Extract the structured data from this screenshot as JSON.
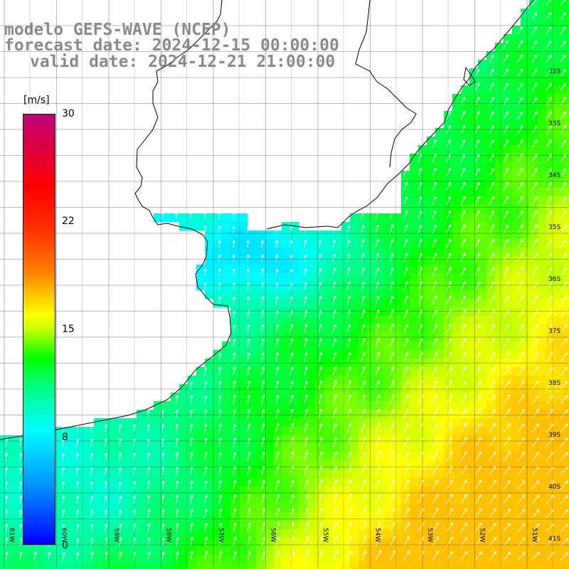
{
  "title": {
    "line1": "modelo GEFS-WAVE (NCEP)",
    "line2": "forecast date: 2024-12-15 00:00:00",
    "line3": "valid date: 2024-12-21 21:00:00"
  },
  "colorbar": {
    "unit": "[m/s]",
    "ticks": [
      "30",
      "22",
      "15",
      "8",
      "0"
    ],
    "stops": [
      {
        "value": 0,
        "color": "#0000ff"
      },
      {
        "value": 4,
        "color": "#0090ff"
      },
      {
        "value": 8,
        "color": "#00ffff"
      },
      {
        "value": 11,
        "color": "#00ff80"
      },
      {
        "value": 13,
        "color": "#00ff00"
      },
      {
        "value": 15,
        "color": "#c8ff00"
      },
      {
        "value": 16,
        "color": "#ffff00"
      },
      {
        "value": 19,
        "color": "#ff8000"
      },
      {
        "value": 22,
        "color": "#ff3000"
      },
      {
        "value": 25,
        "color": "#ff0000"
      },
      {
        "value": 30,
        "color": "#c0007a"
      }
    ]
  },
  "map": {
    "lat_labels": [
      "32S",
      "33S",
      "34S",
      "35S",
      "36S",
      "37S",
      "38S",
      "39S",
      "40S",
      "41S"
    ],
    "lon_labels": [
      "61W",
      "60W",
      "59W",
      "58W",
      "57W",
      "56W",
      "55W",
      "54W",
      "53W",
      "52W",
      "51W"
    ]
  }
}
